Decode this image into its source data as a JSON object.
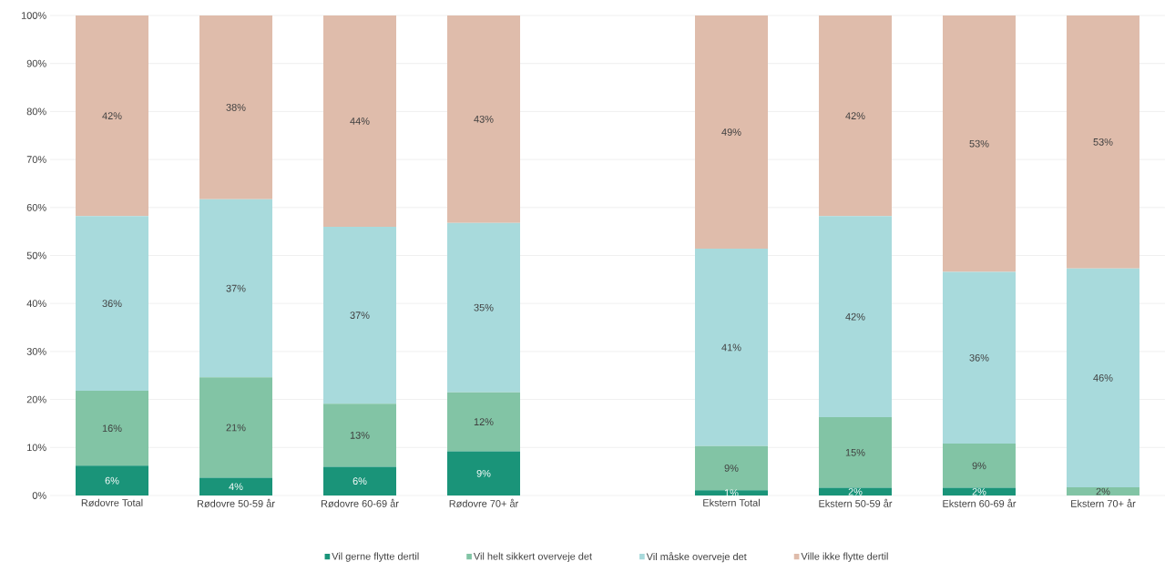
{
  "chart_data": {
    "type": "bar",
    "stacked": true,
    "categories": [
      "Rødovre Total",
      "Rødovre 50-59 år",
      "Rødovre 60-69 år",
      "Rødovre 70+ år",
      null,
      "Ekstern Total",
      "Ekstern 50-59 år",
      "Ekstern 60-69 år",
      "Ekstern 70+ år"
    ],
    "series": [
      {
        "name": "Vil gerne flytte dertil",
        "color": "#1a9479",
        "values": [
          6.2,
          3.7,
          6.0,
          9.2,
          null,
          1.1,
          1.6,
          1.6,
          0
        ],
        "value_labels": [
          "6%",
          "4%",
          "6%",
          "9%",
          null,
          "1%",
          "2%",
          "2%",
          null
        ]
      },
      {
        "name": "Vil helt sikkert overveje det",
        "color": "#82c4a5",
        "values": [
          15.6,
          20.9,
          13.1,
          12.3,
          null,
          9.2,
          14.7,
          9.2,
          1.7
        ],
        "value_labels": [
          "16%",
          "21%",
          "13%",
          "12%",
          null,
          "9%",
          "15%",
          "9%",
          "2%"
        ]
      },
      {
        "name": "Vil måske overveje det",
        "color": "#a8dadc",
        "values": [
          36.4,
          37.1,
          36.9,
          35.3,
          null,
          41.1,
          41.9,
          35.8,
          45.6
        ],
        "value_labels": [
          "36%",
          "37%",
          "37%",
          "35%",
          null,
          "41%",
          "42%",
          "36%",
          "46%"
        ]
      },
      {
        "name": "Ville ikke flytte dertil",
        "color": "#dfbcab",
        "values": [
          41.8,
          38.3,
          44.0,
          43.2,
          null,
          48.6,
          41.8,
          53.4,
          52.7
        ],
        "value_labels": [
          "42%",
          "38%",
          "44%",
          "43%",
          null,
          "49%",
          "42%",
          "53%",
          "53%"
        ]
      }
    ],
    "ylim": [
      0,
      100
    ],
    "yticks": [
      {
        "value": 0,
        "label": "0%"
      },
      {
        "value": 10,
        "label": "10%"
      },
      {
        "value": 20,
        "label": "20%"
      },
      {
        "value": 30,
        "label": "30%"
      },
      {
        "value": 40,
        "label": "40%"
      },
      {
        "value": 50,
        "label": "50%"
      },
      {
        "value": 60,
        "label": "60%"
      },
      {
        "value": 70,
        "label": "70%"
      },
      {
        "value": 80,
        "label": "80%"
      },
      {
        "value": 90,
        "label": "90%"
      },
      {
        "value": 100,
        "label": "100%"
      }
    ],
    "grid": "y",
    "legend": "bottom"
  }
}
